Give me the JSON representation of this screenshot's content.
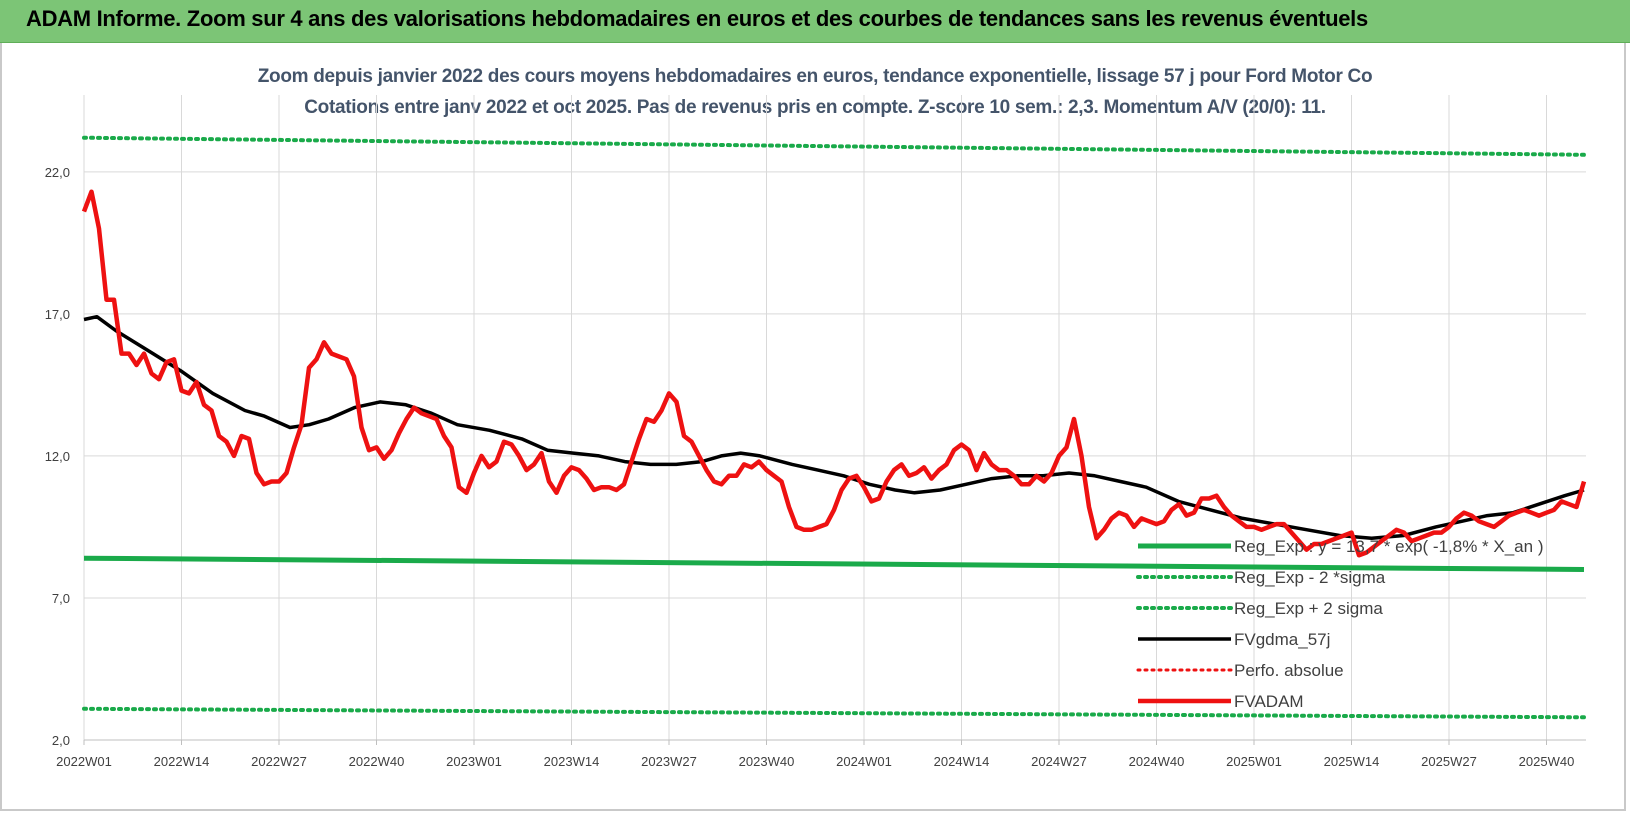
{
  "banner": {
    "title": "ADAM Informe. Zoom sur 4 ans des valorisations hebdomadaires en euros et des courbes de tendances sans les revenus éventuels"
  },
  "colors": {
    "banner_bg": "#7cc576",
    "fvadam": "#ee1111",
    "fvgdma": "#000000",
    "regression": "#1aaa4a",
    "perfo": "#ee1111",
    "subtitle": "#44546a"
  },
  "chart_data": {
    "type": "line",
    "title": "Zoom depuis janvier 2022 des cours moyens hebdomadaires en euros, tendance exponentielle, lissage 57 j pour Ford Motor Co",
    "subtitle": "Cotations entre janv 2022 et oct 2025. Pas de revenus pris en compte. Z-score 10 sem.: 2,3. Momentum A/V (20/0): 11.",
    "ylim": [
      2.0,
      24.0
    ],
    "y_ticks": [
      "2,0",
      "7,0",
      "12,0",
      "17,0",
      "22,0"
    ],
    "y_tick_values": [
      2.0,
      7.0,
      12.0,
      17.0,
      22.0
    ],
    "x_ticks": [
      "2022W01",
      "2022W14",
      "2022W27",
      "2022W40",
      "2023W01",
      "2023W14",
      "2023W27",
      "2023W40",
      "2024W01",
      "2024W14",
      "2024W27",
      "2024W40",
      "2025W01",
      "2025W14",
      "2025W27",
      "2025W40"
    ],
    "x_tick_week_index": [
      0,
      13,
      26,
      39,
      52,
      65,
      78,
      91,
      104,
      117,
      130,
      143,
      156,
      169,
      182,
      195
    ],
    "week_count": 201,
    "grid": true,
    "legend_position": "bottom-right",
    "series": [
      {
        "name": "Reg_Exp : y = 13,7 * exp( -1,8% *  X_an )",
        "style": "solid-green",
        "points": [
          [
            0,
            8.4
          ],
          [
            200,
            8.0
          ]
        ]
      },
      {
        "name": "Reg_Exp - 2 *sigma",
        "style": "dotted-green",
        "points": [
          [
            0,
            3.1
          ],
          [
            200,
            2.8
          ]
        ]
      },
      {
        "name": "Reg_Exp + 2 sigma",
        "style": "dotted-green",
        "points": [
          [
            0,
            23.2
          ],
          [
            200,
            22.6
          ]
        ]
      },
      {
        "name": "FVgdma_57j",
        "style": "solid-black",
        "points": [
          [
            0,
            16.8
          ],
          [
            2,
            16.9
          ],
          [
            5,
            16.4
          ],
          [
            10,
            15.7
          ],
          [
            15,
            15.0
          ],
          [
            20,
            14.2
          ],
          [
            25,
            13.6
          ],
          [
            28,
            13.4
          ],
          [
            32,
            13.0
          ],
          [
            35,
            13.1
          ],
          [
            38,
            13.3
          ],
          [
            42,
            13.7
          ],
          [
            46,
            13.9
          ],
          [
            50,
            13.8
          ],
          [
            54,
            13.5
          ],
          [
            58,
            13.1
          ],
          [
            63,
            12.9
          ],
          [
            68,
            12.6
          ],
          [
            72,
            12.2
          ],
          [
            76,
            12.1
          ],
          [
            80,
            12.0
          ],
          [
            84,
            11.8
          ],
          [
            88,
            11.7
          ],
          [
            92,
            11.7
          ],
          [
            96,
            11.8
          ],
          [
            99,
            12.0
          ],
          [
            102,
            12.1
          ],
          [
            105,
            12.0
          ],
          [
            110,
            11.7
          ],
          [
            114,
            11.5
          ],
          [
            118,
            11.3
          ],
          [
            122,
            11.0
          ],
          [
            126,
            10.8
          ],
          [
            129,
            10.7
          ],
          [
            133,
            10.8
          ],
          [
            137,
            11.0
          ],
          [
            141,
            11.2
          ],
          [
            145,
            11.3
          ],
          [
            149,
            11.3
          ],
          [
            153,
            11.4
          ],
          [
            157,
            11.3
          ],
          [
            161,
            11.1
          ],
          [
            165,
            10.9
          ],
          [
            170,
            10.4
          ],
          [
            175,
            10.1
          ],
          [
            180,
            9.8
          ],
          [
            185,
            9.6
          ],
          [
            190,
            9.4
          ],
          [
            195,
            9.2
          ],
          [
            200,
            9.1
          ],
          [
            205,
            9.2
          ],
          [
            210,
            9.5
          ],
          [
            214,
            9.7
          ],
          [
            218,
            9.9
          ],
          [
            222,
            10.0
          ],
          [
            226,
            10.3
          ],
          [
            230,
            10.6
          ],
          [
            233,
            10.8
          ]
        ]
      },
      {
        "name": "Perfo. absolue",
        "style": "dotted-red",
        "points": []
      },
      {
        "name": "FVADAM",
        "style": "solid-red",
        "points": [
          [
            0,
            20.6
          ],
          [
            1,
            21.3
          ],
          [
            2,
            20.0
          ],
          [
            3,
            17.5
          ],
          [
            4,
            17.5
          ],
          [
            5,
            15.6
          ],
          [
            6,
            15.6
          ],
          [
            7,
            15.2
          ],
          [
            8,
            15.6
          ],
          [
            9,
            14.9
          ],
          [
            10,
            14.7
          ],
          [
            11,
            15.3
          ],
          [
            12,
            15.4
          ],
          [
            13,
            14.3
          ],
          [
            14,
            14.2
          ],
          [
            15,
            14.6
          ],
          [
            16,
            13.8
          ],
          [
            17,
            13.6
          ],
          [
            18,
            12.7
          ],
          [
            19,
            12.5
          ],
          [
            20,
            12.0
          ],
          [
            21,
            12.7
          ],
          [
            22,
            12.6
          ],
          [
            23,
            11.4
          ],
          [
            24,
            11.0
          ],
          [
            25,
            11.1
          ],
          [
            26,
            11.1
          ],
          [
            27,
            11.4
          ],
          [
            28,
            12.3
          ],
          [
            29,
            13.1
          ],
          [
            30,
            15.1
          ],
          [
            31,
            15.4
          ],
          [
            32,
            16.0
          ],
          [
            33,
            15.6
          ],
          [
            34,
            15.5
          ],
          [
            35,
            15.4
          ],
          [
            36,
            14.8
          ],
          [
            37,
            13.0
          ],
          [
            38,
            12.2
          ],
          [
            39,
            12.3
          ],
          [
            40,
            11.9
          ],
          [
            41,
            12.2
          ],
          [
            42,
            12.8
          ],
          [
            43,
            13.3
          ],
          [
            44,
            13.7
          ],
          [
            45,
            13.5
          ],
          [
            46,
            13.4
          ],
          [
            47,
            13.3
          ],
          [
            48,
            12.7
          ],
          [
            49,
            12.3
          ],
          [
            50,
            10.9
          ],
          [
            51,
            10.7
          ],
          [
            52,
            11.4
          ],
          [
            53,
            12.0
          ],
          [
            54,
            11.6
          ],
          [
            55,
            11.8
          ],
          [
            56,
            12.5
          ],
          [
            57,
            12.4
          ],
          [
            58,
            12.0
          ],
          [
            59,
            11.5
          ],
          [
            60,
            11.7
          ],
          [
            61,
            12.1
          ],
          [
            62,
            11.1
          ],
          [
            63,
            10.7
          ],
          [
            64,
            11.3
          ],
          [
            65,
            11.6
          ],
          [
            66,
            11.5
          ],
          [
            67,
            11.2
          ],
          [
            68,
            10.8
          ],
          [
            69,
            10.9
          ],
          [
            70,
            10.9
          ],
          [
            71,
            10.8
          ],
          [
            72,
            11.0
          ],
          [
            73,
            11.8
          ],
          [
            74,
            12.6
          ],
          [
            75,
            13.3
          ],
          [
            76,
            13.2
          ],
          [
            77,
            13.6
          ],
          [
            78,
            14.2
          ],
          [
            79,
            13.9
          ],
          [
            80,
            12.7
          ],
          [
            81,
            12.5
          ],
          [
            82,
            12.0
          ],
          [
            83,
            11.5
          ],
          [
            84,
            11.1
          ],
          [
            85,
            11.0
          ],
          [
            86,
            11.3
          ],
          [
            87,
            11.3
          ],
          [
            88,
            11.7
          ],
          [
            89,
            11.6
          ],
          [
            90,
            11.8
          ],
          [
            91,
            11.5
          ],
          [
            92,
            11.3
          ],
          [
            93,
            11.1
          ],
          [
            94,
            10.2
          ],
          [
            95,
            9.5
          ],
          [
            96,
            9.4
          ],
          [
            97,
            9.4
          ],
          [
            98,
            9.5
          ],
          [
            99,
            9.6
          ],
          [
            100,
            10.1
          ],
          [
            101,
            10.8
          ],
          [
            102,
            11.2
          ],
          [
            103,
            11.3
          ],
          [
            104,
            10.9
          ],
          [
            105,
            10.4
          ],
          [
            106,
            10.5
          ],
          [
            107,
            11.1
          ],
          [
            108,
            11.5
          ],
          [
            109,
            11.7
          ],
          [
            110,
            11.3
          ],
          [
            111,
            11.4
          ],
          [
            112,
            11.6
          ],
          [
            113,
            11.2
          ],
          [
            114,
            11.5
          ],
          [
            115,
            11.7
          ],
          [
            116,
            12.2
          ],
          [
            117,
            12.4
          ],
          [
            118,
            12.2
          ],
          [
            119,
            11.5
          ],
          [
            120,
            12.1
          ],
          [
            121,
            11.7
          ],
          [
            122,
            11.5
          ],
          [
            123,
            11.5
          ],
          [
            124,
            11.3
          ],
          [
            125,
            11.0
          ],
          [
            126,
            11.0
          ],
          [
            127,
            11.3
          ],
          [
            128,
            11.1
          ],
          [
            129,
            11.4
          ],
          [
            130,
            12.0
          ],
          [
            131,
            12.3
          ],
          [
            132,
            13.3
          ],
          [
            133,
            12.0
          ],
          [
            134,
            10.2
          ],
          [
            135,
            9.1
          ],
          [
            136,
            9.4
          ],
          [
            137,
            9.8
          ],
          [
            138,
            10.0
          ],
          [
            139,
            9.9
          ],
          [
            140,
            9.5
          ],
          [
            141,
            9.8
          ],
          [
            142,
            9.7
          ],
          [
            143,
            9.6
          ],
          [
            144,
            9.7
          ],
          [
            145,
            10.1
          ],
          [
            146,
            10.3
          ],
          [
            147,
            9.9
          ],
          [
            148,
            10.0
          ],
          [
            149,
            10.5
          ],
          [
            150,
            10.5
          ],
          [
            151,
            10.6
          ],
          [
            152,
            10.2
          ],
          [
            153,
            9.9
          ],
          [
            154,
            9.7
          ],
          [
            155,
            9.5
          ],
          [
            156,
            9.5
          ],
          [
            157,
            9.4
          ],
          [
            158,
            9.5
          ],
          [
            159,
            9.6
          ],
          [
            160,
            9.6
          ],
          [
            161,
            9.3
          ],
          [
            162,
            9.0
          ],
          [
            163,
            8.7
          ],
          [
            164,
            8.9
          ],
          [
            165,
            8.9
          ],
          [
            166,
            9.0
          ],
          [
            167,
            9.1
          ],
          [
            168,
            9.2
          ],
          [
            169,
            9.3
          ],
          [
            170,
            8.5
          ],
          [
            171,
            8.6
          ],
          [
            172,
            8.8
          ],
          [
            173,
            9.0
          ],
          [
            174,
            9.2
          ],
          [
            175,
            9.4
          ],
          [
            176,
            9.3
          ],
          [
            177,
            9.0
          ],
          [
            178,
            9.1
          ],
          [
            179,
            9.2
          ],
          [
            180,
            9.3
          ],
          [
            181,
            9.3
          ],
          [
            182,
            9.5
          ],
          [
            183,
            9.8
          ],
          [
            184,
            10.0
          ],
          [
            185,
            9.9
          ],
          [
            186,
            9.7
          ],
          [
            187,
            9.6
          ],
          [
            188,
            9.5
          ],
          [
            189,
            9.7
          ],
          [
            190,
            9.9
          ],
          [
            191,
            10.0
          ],
          [
            192,
            10.1
          ],
          [
            193,
            10.0
          ],
          [
            194,
            9.9
          ],
          [
            195,
            10.0
          ],
          [
            196,
            10.1
          ],
          [
            197,
            10.4
          ],
          [
            198,
            10.3
          ],
          [
            199,
            10.2
          ],
          [
            200,
            11.1
          ]
        ]
      }
    ]
  }
}
